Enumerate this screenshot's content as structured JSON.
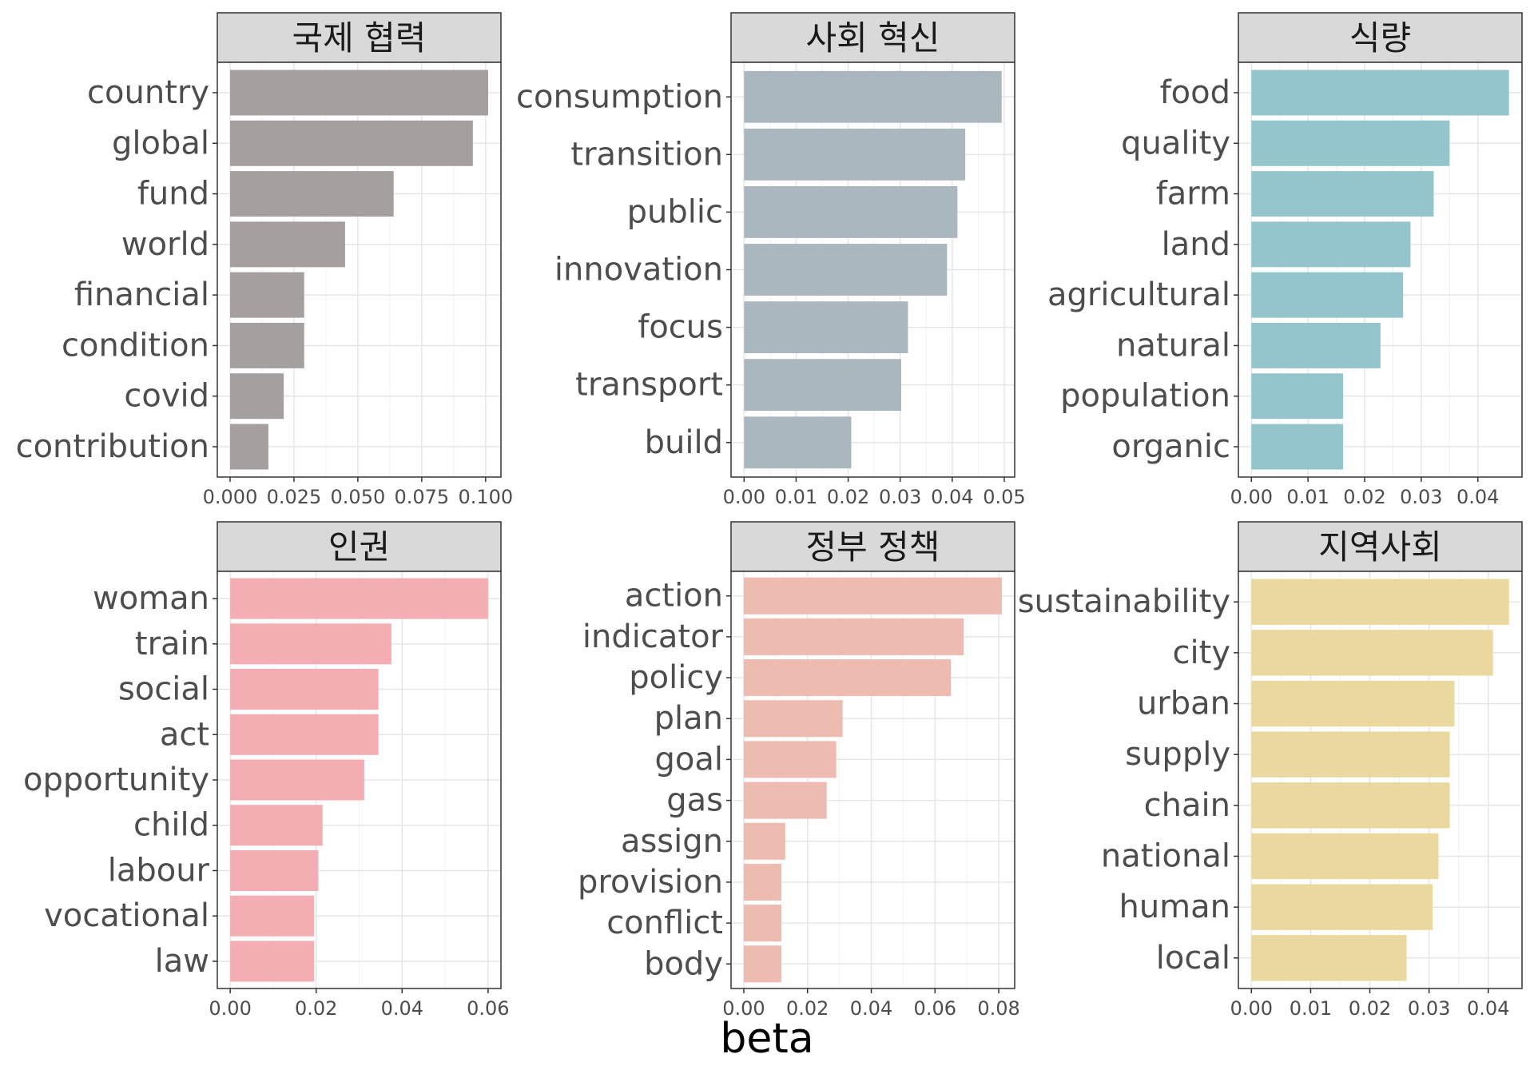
{
  "figure": {
    "xlabel": "beta"
  },
  "chart_data": [
    {
      "type": "bar",
      "title": "국제 협력",
      "color": "#a59f9f",
      "categories": [
        "country",
        "global",
        "fund",
        "world",
        "financial",
        "condition",
        "covid",
        "contribution"
      ],
      "values": [
        0.101,
        0.095,
        0.064,
        0.045,
        0.029,
        0.029,
        0.021,
        0.015
      ],
      "xlim": [
        -0.005,
        0.106
      ],
      "ticks": [
        0.0,
        0.025,
        0.05,
        0.075,
        0.1
      ],
      "tick_labels": [
        "0.000",
        "0.025",
        "0.050",
        "0.075",
        "0.100"
      ]
    },
    {
      "type": "bar",
      "title": "사회 혁신",
      "color": "#abb7bf",
      "categories": [
        "consumption",
        "transition",
        "public",
        "innovation",
        "focus",
        "transport",
        "build"
      ],
      "values": [
        0.0495,
        0.0425,
        0.041,
        0.039,
        0.0315,
        0.0302,
        0.0206
      ],
      "xlim": [
        -0.0025,
        0.052
      ],
      "ticks": [
        0.0,
        0.01,
        0.02,
        0.03,
        0.04,
        0.05
      ],
      "tick_labels": [
        "0.00",
        "0.01",
        "0.02",
        "0.03",
        "0.04",
        "0.05"
      ]
    },
    {
      "type": "bar",
      "title": "식량",
      "color": "#95c5cc",
      "categories": [
        "food",
        "quality",
        "farm",
        "land",
        "agricultural",
        "natural",
        "population",
        "organic"
      ],
      "values": [
        0.0455,
        0.035,
        0.0322,
        0.0281,
        0.0268,
        0.0228,
        0.0162,
        0.0162
      ],
      "xlim": [
        -0.0023,
        0.0478
      ],
      "ticks": [
        0.0,
        0.01,
        0.02,
        0.03,
        0.04
      ],
      "tick_labels": [
        "0.00",
        "0.01",
        "0.02",
        "0.03",
        "0.04"
      ]
    },
    {
      "type": "bar",
      "title": "인권",
      "color": "#f4aeb3",
      "categories": [
        "woman",
        "train",
        "social",
        "act",
        "opportunity",
        "child",
        "labour",
        "vocational",
        "law"
      ],
      "values": [
        0.06,
        0.0375,
        0.0345,
        0.0345,
        0.0312,
        0.0215,
        0.0205,
        0.0195,
        0.0195
      ],
      "xlim": [
        -0.003,
        0.063
      ],
      "ticks": [
        0.0,
        0.02,
        0.04,
        0.06
      ],
      "tick_labels": [
        "0.00",
        "0.02",
        "0.04",
        "0.06"
      ]
    },
    {
      "type": "bar",
      "title": "정부 정책",
      "color": "#eebbb1",
      "categories": [
        "action",
        "indicator",
        "policy",
        "plan",
        "goal",
        "gas",
        "assign",
        "provision",
        "conflict",
        "body"
      ],
      "values": [
        0.081,
        0.069,
        0.065,
        0.031,
        0.029,
        0.026,
        0.013,
        0.0118,
        0.0118,
        0.0118
      ],
      "xlim": [
        -0.004,
        0.085
      ],
      "ticks": [
        0.0,
        0.02,
        0.04,
        0.06,
        0.08
      ],
      "tick_labels": [
        "0.00",
        "0.02",
        "0.04",
        "0.06",
        "0.08"
      ]
    },
    {
      "type": "bar",
      "title": "지역사회",
      "color": "#ebd89e",
      "categories": [
        "sustainability",
        "city",
        "urban",
        "supply",
        "chain",
        "national",
        "human",
        "local"
      ],
      "values": [
        0.0435,
        0.0408,
        0.0343,
        0.0335,
        0.0335,
        0.0316,
        0.0306,
        0.0262
      ],
      "xlim": [
        -0.0022,
        0.0457
      ],
      "ticks": [
        0.0,
        0.01,
        0.02,
        0.03,
        0.04
      ],
      "tick_labels": [
        "0.00",
        "0.01",
        "0.02",
        "0.03",
        "0.04"
      ]
    }
  ]
}
